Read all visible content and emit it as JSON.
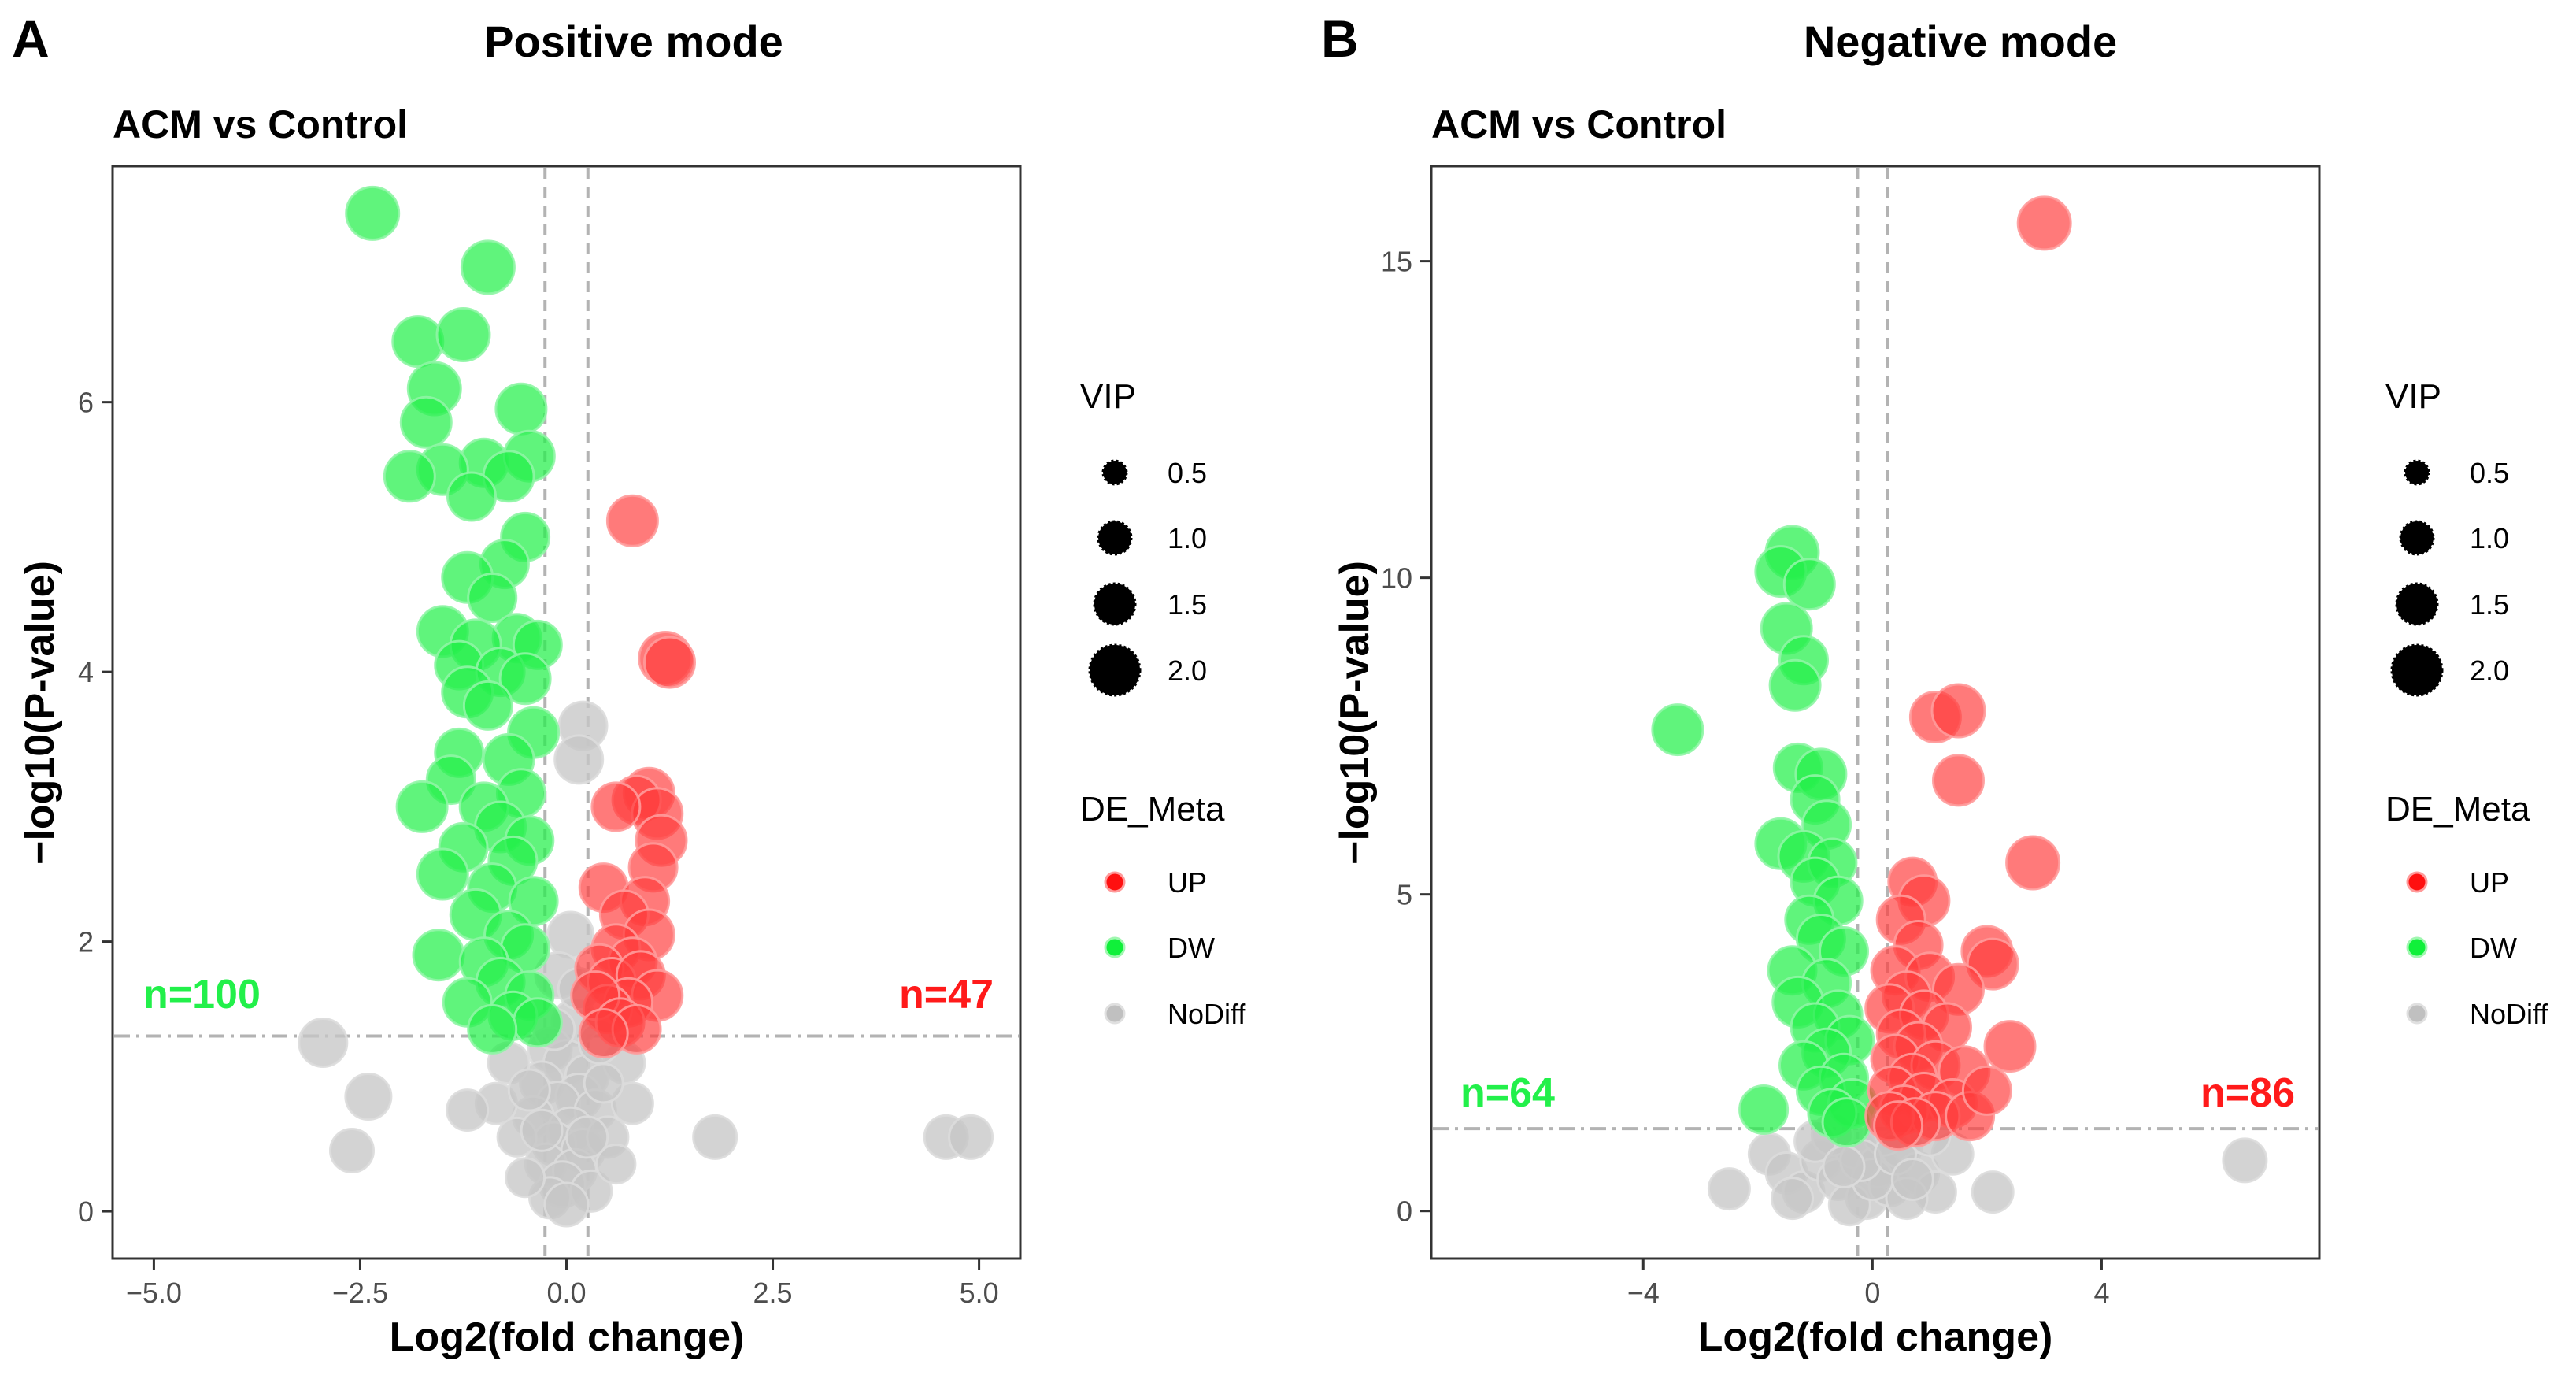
{
  "chart_data": [
    {
      "type": "scatter",
      "panel": "A",
      "title": "Positive mode",
      "subtitle": "ACM vs Control",
      "xlabel": "Log2(fold change)",
      "ylabel": "−log10(P-value)",
      "xlim": [
        -5.5,
        5.5
      ],
      "ylim": [
        -0.35,
        7.75
      ],
      "xticks": [
        -5,
        -2.5,
        0,
        2.5,
        5
      ],
      "xtick_labels": [
        "−5.0",
        "−2.5",
        "0.0",
        "2.5",
        "5.0"
      ],
      "yticks": [
        0,
        2,
        4,
        6
      ],
      "ytick_labels": [
        "0",
        "2",
        "4",
        "6"
      ],
      "fc_threshold": 0.26,
      "p_threshold": 1.3,
      "counts": {
        "down": "n=100",
        "up": "n=47"
      },
      "points": {
        "UP": [
          [
            0.8,
            5.12,
            1.4
          ],
          [
            1.2,
            4.1,
            1.5
          ],
          [
            1.25,
            4.07,
            1.4
          ],
          [
            1.0,
            3.1,
            1.4
          ],
          [
            0.85,
            3.05,
            1.3
          ],
          [
            1.1,
            2.95,
            1.4
          ],
          [
            0.6,
            3.0,
            1.3
          ],
          [
            1.15,
            2.75,
            1.4
          ],
          [
            1.05,
            2.55,
            1.3
          ],
          [
            0.45,
            2.4,
            1.3
          ],
          [
            0.95,
            2.3,
            1.3
          ],
          [
            0.7,
            2.2,
            1.3
          ],
          [
            1.0,
            2.05,
            1.4
          ],
          [
            0.6,
            1.95,
            1.3
          ],
          [
            0.8,
            1.85,
            1.3
          ],
          [
            0.4,
            1.8,
            1.3
          ],
          [
            0.55,
            1.7,
            1.3
          ],
          [
            0.9,
            1.75,
            1.3
          ],
          [
            1.1,
            1.6,
            1.4
          ],
          [
            0.75,
            1.55,
            1.3
          ],
          [
            0.5,
            1.5,
            1.3
          ],
          [
            0.35,
            1.6,
            1.3
          ],
          [
            0.65,
            1.4,
            1.3
          ],
          [
            0.85,
            1.35,
            1.3
          ],
          [
            0.45,
            1.32,
            1.3
          ]
        ],
        "DW": [
          [
            -2.35,
            7.4,
            1.5
          ],
          [
            -0.95,
            7.0,
            1.5
          ],
          [
            -1.8,
            6.45,
            1.4
          ],
          [
            -1.25,
            6.5,
            1.5
          ],
          [
            -1.6,
            6.1,
            1.5
          ],
          [
            -0.55,
            5.95,
            1.4
          ],
          [
            -1.7,
            5.85,
            1.4
          ],
          [
            -1.0,
            5.55,
            1.3
          ],
          [
            -0.45,
            5.6,
            1.4
          ],
          [
            -1.5,
            5.5,
            1.4
          ],
          [
            -0.7,
            5.45,
            1.4
          ],
          [
            -1.9,
            5.45,
            1.4
          ],
          [
            -1.15,
            5.3,
            1.3
          ],
          [
            -0.5,
            5.0,
            1.3
          ],
          [
            -0.75,
            4.8,
            1.3
          ],
          [
            -1.2,
            4.7,
            1.4
          ],
          [
            -0.9,
            4.55,
            1.3
          ],
          [
            -1.5,
            4.3,
            1.4
          ],
          [
            -0.6,
            4.25,
            1.3
          ],
          [
            -1.1,
            4.2,
            1.4
          ],
          [
            -0.35,
            4.2,
            1.3
          ],
          [
            -1.3,
            4.05,
            1.3
          ],
          [
            -0.8,
            4.0,
            1.3
          ],
          [
            -0.5,
            3.95,
            1.4
          ],
          [
            -1.2,
            3.85,
            1.4
          ],
          [
            -0.95,
            3.75,
            1.3
          ],
          [
            -0.4,
            3.55,
            1.4
          ],
          [
            -1.3,
            3.4,
            1.3
          ],
          [
            -0.7,
            3.35,
            1.4
          ],
          [
            -1.4,
            3.2,
            1.3
          ],
          [
            -0.55,
            3.1,
            1.3
          ],
          [
            -1.0,
            3.0,
            1.3
          ],
          [
            -1.75,
            3.0,
            1.4
          ],
          [
            -0.8,
            2.85,
            1.4
          ],
          [
            -0.45,
            2.75,
            1.3
          ],
          [
            -1.25,
            2.7,
            1.3
          ],
          [
            -0.65,
            2.6,
            1.3
          ],
          [
            -1.5,
            2.5,
            1.4
          ],
          [
            -0.9,
            2.4,
            1.3
          ],
          [
            -0.4,
            2.3,
            1.3
          ],
          [
            -1.1,
            2.2,
            1.4
          ],
          [
            -0.7,
            2.05,
            1.3
          ],
          [
            -1.55,
            1.9,
            1.4
          ],
          [
            -0.5,
            1.95,
            1.3
          ],
          [
            -1.0,
            1.85,
            1.3
          ],
          [
            -0.8,
            1.7,
            1.3
          ],
          [
            -0.45,
            1.6,
            1.3
          ],
          [
            -1.2,
            1.55,
            1.3
          ],
          [
            -0.65,
            1.45,
            1.3
          ],
          [
            -0.35,
            1.4,
            1.3
          ],
          [
            -0.9,
            1.35,
            1.3
          ]
        ],
        "NoDiff": [
          [
            0.2,
            3.6,
            1.3
          ],
          [
            0.15,
            3.35,
            1.3
          ],
          [
            -2.95,
            1.25,
            1.3
          ],
          [
            -2.4,
            0.85,
            1.2
          ],
          [
            -2.6,
            0.45,
            1.1
          ],
          [
            1.8,
            0.55,
            1.1
          ],
          [
            4.6,
            0.55,
            1.1
          ],
          [
            4.9,
            0.55,
            1.1
          ],
          [
            0.05,
            2.05,
            1.2
          ],
          [
            -0.1,
            1.75,
            1.2
          ],
          [
            0.1,
            1.4,
            1.2
          ],
          [
            -0.2,
            1.2,
            1.1
          ],
          [
            0.0,
            1.1,
            1.2
          ],
          [
            0.25,
            1.0,
            1.1
          ],
          [
            -0.3,
            0.95,
            1.1
          ],
          [
            0.15,
            0.85,
            1.2
          ],
          [
            -0.1,
            0.8,
            1.1
          ],
          [
            0.35,
            0.75,
            1.0
          ],
          [
            -0.4,
            0.7,
            1.0
          ],
          [
            0.05,
            0.6,
            1.2
          ],
          [
            -0.15,
            0.5,
            1.1
          ],
          [
            0.2,
            0.45,
            1.1
          ],
          [
            -0.25,
            0.35,
            1.0
          ],
          [
            0.1,
            0.3,
            1.1
          ],
          [
            -0.05,
            0.2,
            1.2
          ],
          [
            0.3,
            0.15,
            1.0
          ],
          [
            -0.2,
            0.1,
            1.0
          ],
          [
            0.0,
            0.05,
            1.1
          ],
          [
            0.5,
            0.55,
            1.0
          ],
          [
            0.8,
            0.8,
            1.0
          ],
          [
            -0.6,
            0.55,
            0.9
          ],
          [
            -0.85,
            0.8,
            1.0
          ],
          [
            -1.2,
            0.75,
            1.0
          ],
          [
            0.6,
            0.35,
            0.9
          ],
          [
            -0.5,
            0.25,
            0.9
          ],
          [
            0.7,
            1.1,
            1.0
          ],
          [
            -0.7,
            1.1,
            1.0
          ],
          [
            0.4,
            1.25,
            1.0
          ],
          [
            -0.45,
            0.9,
            1.0
          ],
          [
            0.25,
            0.55,
            1.0
          ],
          [
            -0.3,
            0.6,
            1.0
          ],
          [
            0.45,
            0.95,
            0.9
          ],
          [
            -0.15,
            1.35,
            1.0
          ],
          [
            0.15,
            1.65,
            1.0
          ]
        ]
      }
    },
    {
      "type": "scatter",
      "panel": "B",
      "title": "Negative mode",
      "subtitle": "ACM vs Control",
      "xlabel": "Log2(fold change)",
      "ylabel": "−log10(P-value)",
      "xlim": [
        -7.7,
        7.8
      ],
      "ylim": [
        -0.75,
        16.5
      ],
      "xticks": [
        -4,
        0,
        4
      ],
      "xtick_labels": [
        "−4",
        "0",
        "4"
      ],
      "yticks": [
        0,
        5,
        10,
        15
      ],
      "ytick_labels": [
        "0",
        "5",
        "10",
        "15"
      ],
      "fc_threshold": 0.26,
      "p_threshold": 1.3,
      "counts": {
        "down": "n=64",
        "up": "n=86"
      },
      "points": {
        "UP": [
          [
            3.0,
            15.6,
            1.5
          ],
          [
            1.1,
            7.8,
            1.4
          ],
          [
            1.5,
            7.9,
            1.5
          ],
          [
            1.5,
            6.8,
            1.4
          ],
          [
            2.8,
            5.5,
            1.5
          ],
          [
            0.7,
            5.2,
            1.3
          ],
          [
            0.9,
            4.9,
            1.4
          ],
          [
            0.5,
            4.6,
            1.3
          ],
          [
            0.8,
            4.2,
            1.3
          ],
          [
            2.0,
            4.1,
            1.4
          ],
          [
            2.1,
            3.9,
            1.4
          ],
          [
            0.4,
            3.8,
            1.3
          ],
          [
            1.0,
            3.7,
            1.3
          ],
          [
            1.5,
            3.5,
            1.4
          ],
          [
            0.6,
            3.4,
            1.3
          ],
          [
            0.3,
            3.2,
            1.3
          ],
          [
            0.9,
            3.1,
            1.3
          ],
          [
            1.3,
            2.9,
            1.3
          ],
          [
            0.5,
            2.8,
            1.3
          ],
          [
            0.8,
            2.6,
            1.3
          ],
          [
            2.4,
            2.6,
            1.4
          ],
          [
            0.4,
            2.4,
            1.3
          ],
          [
            1.1,
            2.3,
            1.3
          ],
          [
            0.7,
            2.1,
            1.3
          ],
          [
            1.6,
            2.2,
            1.4
          ],
          [
            0.35,
            1.9,
            1.3
          ],
          [
            0.9,
            1.8,
            1.3
          ],
          [
            1.4,
            1.7,
            1.3
          ],
          [
            0.55,
            1.6,
            1.3
          ],
          [
            1.1,
            1.5,
            1.3
          ],
          [
            0.3,
            1.5,
            1.3
          ],
          [
            0.75,
            1.4,
            1.3
          ],
          [
            1.7,
            1.5,
            1.3
          ],
          [
            0.45,
            1.35,
            1.3
          ],
          [
            2.0,
            1.9,
            1.3
          ]
        ],
        "DW": [
          [
            -1.4,
            10.4,
            1.5
          ],
          [
            -1.6,
            10.1,
            1.4
          ],
          [
            -1.1,
            9.9,
            1.4
          ],
          [
            -1.5,
            9.2,
            1.4
          ],
          [
            -1.2,
            8.7,
            1.3
          ],
          [
            -1.35,
            8.3,
            1.4
          ],
          [
            -3.4,
            7.6,
            1.4
          ],
          [
            -1.3,
            7.0,
            1.3
          ],
          [
            -0.9,
            6.9,
            1.4
          ],
          [
            -1.0,
            6.5,
            1.3
          ],
          [
            -0.8,
            6.1,
            1.3
          ],
          [
            -1.6,
            5.8,
            1.4
          ],
          [
            -1.2,
            5.6,
            1.4
          ],
          [
            -0.7,
            5.5,
            1.3
          ],
          [
            -1.0,
            5.2,
            1.3
          ],
          [
            -0.6,
            4.9,
            1.3
          ],
          [
            -1.1,
            4.6,
            1.3
          ],
          [
            -0.9,
            4.3,
            1.3
          ],
          [
            -0.5,
            4.1,
            1.3
          ],
          [
            -1.4,
            3.8,
            1.3
          ],
          [
            -0.8,
            3.6,
            1.3
          ],
          [
            -1.3,
            3.3,
            1.4
          ],
          [
            -0.6,
            3.1,
            1.3
          ],
          [
            -1.0,
            2.9,
            1.3
          ],
          [
            -0.4,
            2.7,
            1.3
          ],
          [
            -0.8,
            2.5,
            1.3
          ],
          [
            -1.2,
            2.3,
            1.3
          ],
          [
            -0.5,
            2.1,
            1.3
          ],
          [
            -0.9,
            1.9,
            1.3
          ],
          [
            -0.35,
            1.7,
            1.3
          ],
          [
            -0.7,
            1.55,
            1.3
          ],
          [
            -0.45,
            1.4,
            1.3
          ],
          [
            -1.9,
            1.6,
            1.3
          ]
        ],
        "NoDiff": [
          [
            -2.5,
            0.35,
            1.0
          ],
          [
            -1.8,
            0.9,
            1.0
          ],
          [
            -1.5,
            0.6,
            1.0
          ],
          [
            -1.2,
            0.3,
            1.0
          ],
          [
            -0.9,
            0.8,
            1.0
          ],
          [
            -0.6,
            0.5,
            1.0
          ],
          [
            -0.3,
            1.0,
            1.0
          ],
          [
            -0.1,
            0.2,
            1.0
          ],
          [
            0.1,
            0.7,
            1.0
          ],
          [
            0.3,
            0.4,
            1.0
          ],
          [
            0.5,
            1.0,
            1.0
          ],
          [
            0.8,
            0.6,
            1.0
          ],
          [
            1.1,
            0.3,
            1.0
          ],
          [
            1.4,
            0.9,
            1.0
          ],
          [
            2.1,
            0.3,
            1.0
          ],
          [
            6.5,
            0.8,
            1.1
          ],
          [
            -0.4,
            0.1,
            1.0
          ],
          [
            0.2,
            1.2,
            1.0
          ],
          [
            -0.7,
            1.2,
            1.0
          ],
          [
            0.6,
            0.2,
            1.0
          ],
          [
            -1.0,
            1.1,
            1.0
          ],
          [
            0.0,
            0.5,
            1.0
          ],
          [
            -0.2,
            0.8,
            1.0
          ],
          [
            0.4,
            0.9,
            1.0
          ],
          [
            -1.4,
            0.2,
            1.0
          ],
          [
            1.0,
            1.2,
            1.0
          ],
          [
            -0.5,
            0.7,
            1.0
          ],
          [
            0.7,
            0.5,
            1.0
          ]
        ]
      }
    }
  ],
  "legend": {
    "size_title": "VIP",
    "size_labels": [
      "0.5",
      "1.0",
      "1.5",
      "2.0"
    ],
    "color_title": "DE_Meta",
    "color_labels": [
      "UP",
      "DW",
      "NoDiff"
    ]
  },
  "colors": {
    "up": "#ff3b3b",
    "dw": "#22f04a",
    "nodiff": "#c6c6c6",
    "up_legend": "#ff1010",
    "dw_legend": "#10f03a",
    "nodiff_legend": "#c0c0c0"
  }
}
